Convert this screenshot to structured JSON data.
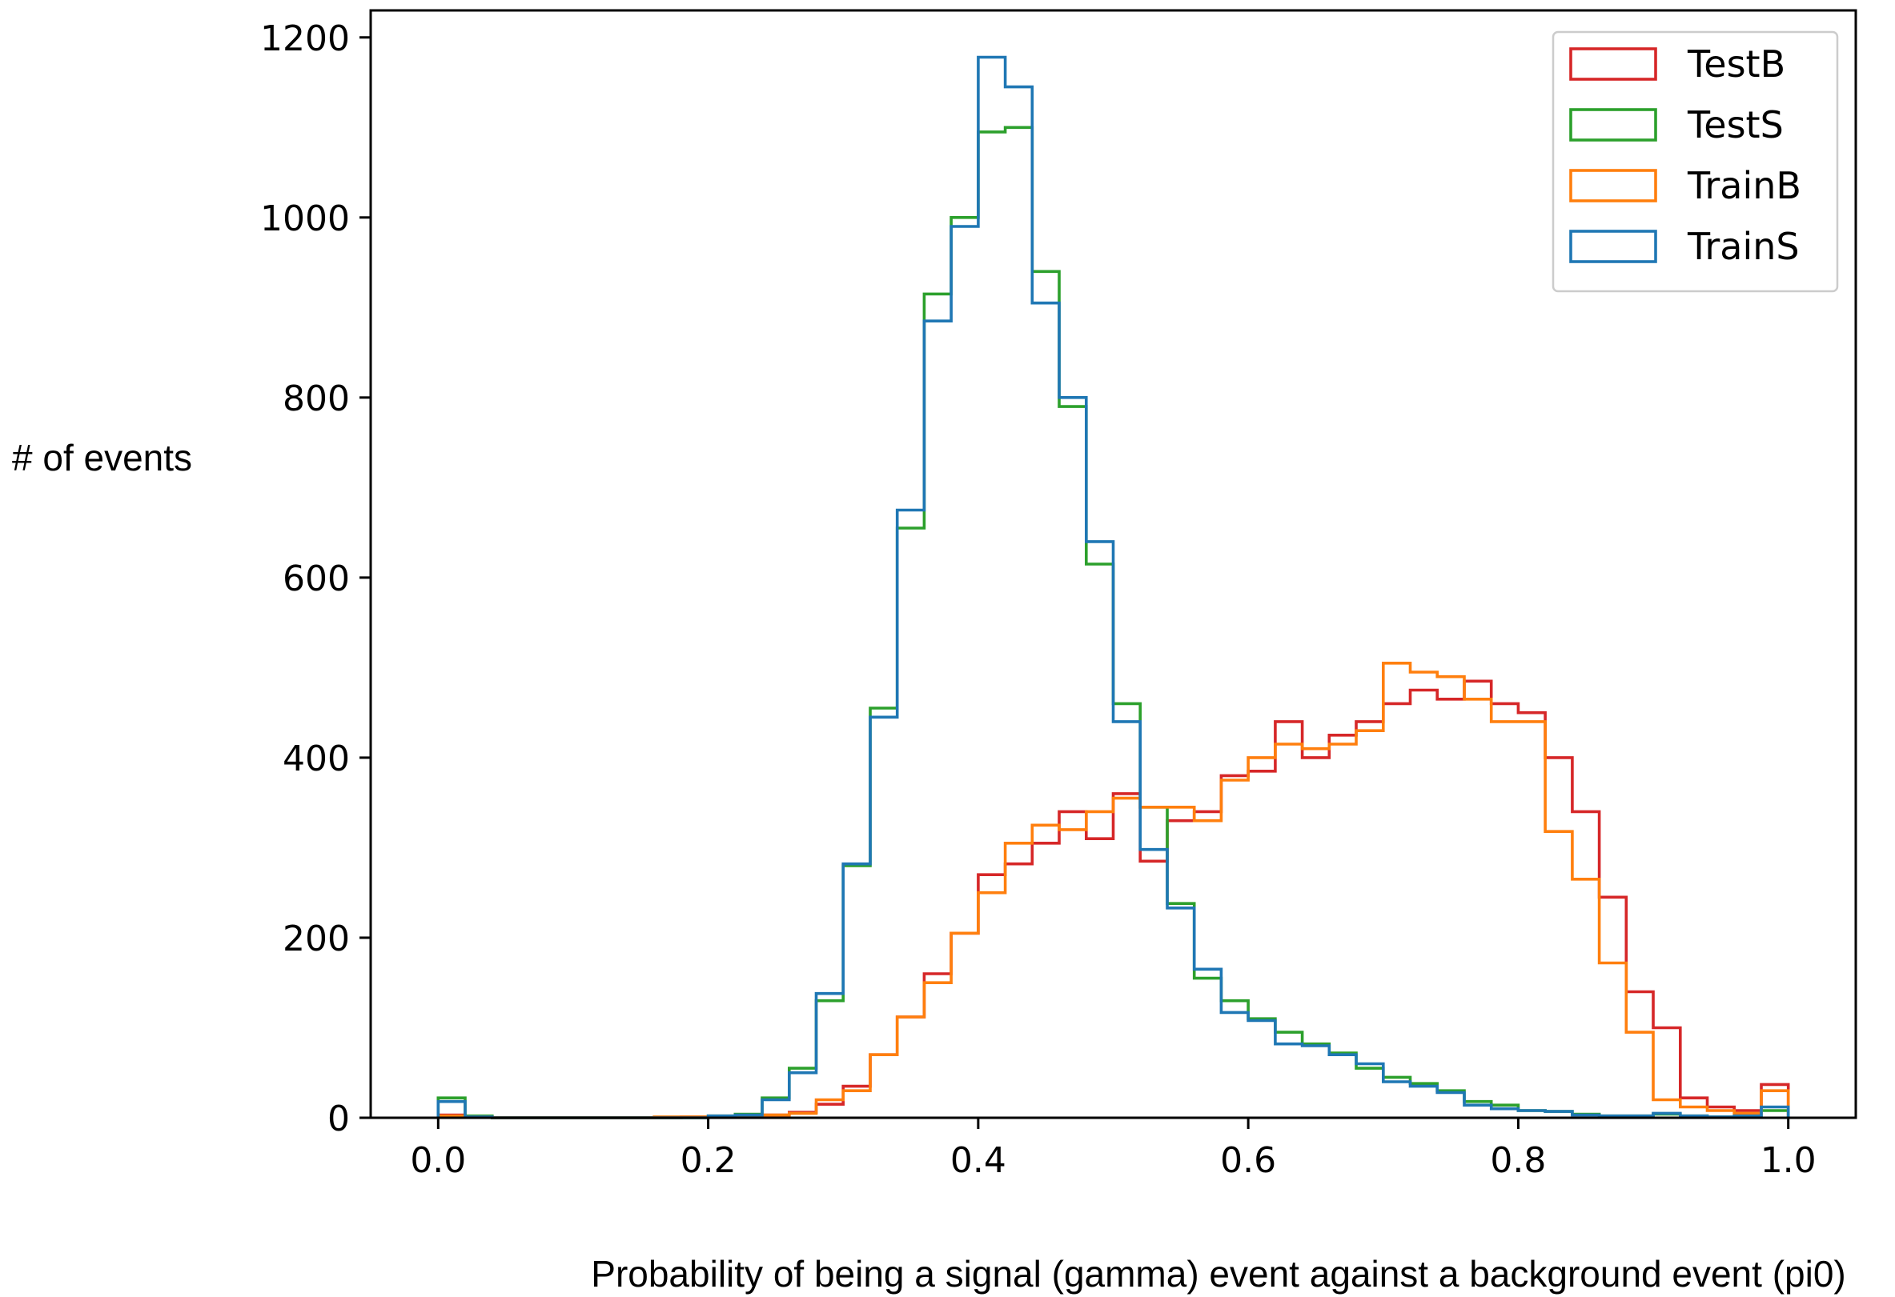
{
  "chart_data": {
    "type": "histogram",
    "xlabel": "Probability of being a signal (gamma) event against a background event (pi0)",
    "ylabel": "# of events",
    "xlim": [
      -0.05,
      1.05
    ],
    "ylim": [
      0,
      1230
    ],
    "xticks": [
      "0.0",
      "0.2",
      "0.4",
      "0.6",
      "0.8",
      "1.0"
    ],
    "yticks": [
      "0",
      "200",
      "400",
      "600",
      "800",
      "1000",
      "1200"
    ],
    "grid": false,
    "legend_position": "top-right",
    "bin_edges": [
      0.0,
      0.02,
      0.04,
      0.06,
      0.08,
      0.1,
      0.12,
      0.14,
      0.16,
      0.18,
      0.2,
      0.22,
      0.24,
      0.26,
      0.28,
      0.3,
      0.32,
      0.34,
      0.36,
      0.38,
      0.4,
      0.42,
      0.44,
      0.46,
      0.48,
      0.5,
      0.52,
      0.54,
      0.56,
      0.58,
      0.6,
      0.62,
      0.64,
      0.66,
      0.68,
      0.7,
      0.72,
      0.74,
      0.76,
      0.78,
      0.8,
      0.82,
      0.84,
      0.86,
      0.88,
      0.9,
      0.92,
      0.94,
      0.96,
      0.98,
      1.0
    ],
    "series": [
      {
        "name": "TestB",
        "color": "#d62728",
        "values": [
          3,
          1,
          0,
          0,
          0,
          0,
          0,
          0,
          0,
          1,
          1,
          2,
          3,
          6,
          15,
          35,
          70,
          112,
          160,
          205,
          270,
          282,
          305,
          340,
          310,
          360,
          285,
          330,
          340,
          380,
          385,
          440,
          400,
          425,
          440,
          460,
          475,
          465,
          485,
          460,
          450,
          400,
          340,
          245,
          140,
          100,
          22,
          12,
          8,
          37
        ]
      },
      {
        "name": "TestS",
        "color": "#2ca02c",
        "values": [
          22,
          2,
          0,
          0,
          0,
          0,
          0,
          0,
          0,
          0,
          2,
          4,
          22,
          55,
          130,
          280,
          455,
          655,
          915,
          1000,
          1095,
          1100,
          940,
          790,
          615,
          460,
          345,
          238,
          155,
          130,
          110,
          95,
          82,
          72,
          55,
          45,
          38,
          30,
          18,
          14,
          8,
          7,
          4,
          2,
          2,
          4,
          2,
          1,
          1,
          8
        ]
      },
      {
        "name": "TrainB",
        "color": "#ff7f0e",
        "values": [
          2,
          1,
          0,
          0,
          0,
          0,
          0,
          0,
          1,
          1,
          1,
          2,
          3,
          5,
          20,
          30,
          70,
          112,
          150,
          205,
          250,
          305,
          325,
          320,
          340,
          355,
          345,
          345,
          330,
          375,
          400,
          415,
          410,
          415,
          430,
          505,
          495,
          490,
          465,
          440,
          440,
          318,
          265,
          172,
          95,
          20,
          12,
          8,
          5,
          30
        ]
      },
      {
        "name": "TrainS",
        "color": "#1f77b4",
        "values": [
          18,
          1,
          0,
          0,
          0,
          0,
          0,
          0,
          0,
          0,
          2,
          3,
          20,
          50,
          138,
          282,
          445,
          675,
          885,
          990,
          1178,
          1145,
          905,
          800,
          640,
          440,
          298,
          233,
          165,
          117,
          108,
          82,
          80,
          70,
          60,
          40,
          35,
          28,
          14,
          10,
          8,
          7,
          3,
          2,
          2,
          5,
          2,
          1,
          2,
          12
        ]
      }
    ],
    "legend_order": [
      "TestB",
      "TestS",
      "TrainB",
      "TrainS"
    ]
  }
}
